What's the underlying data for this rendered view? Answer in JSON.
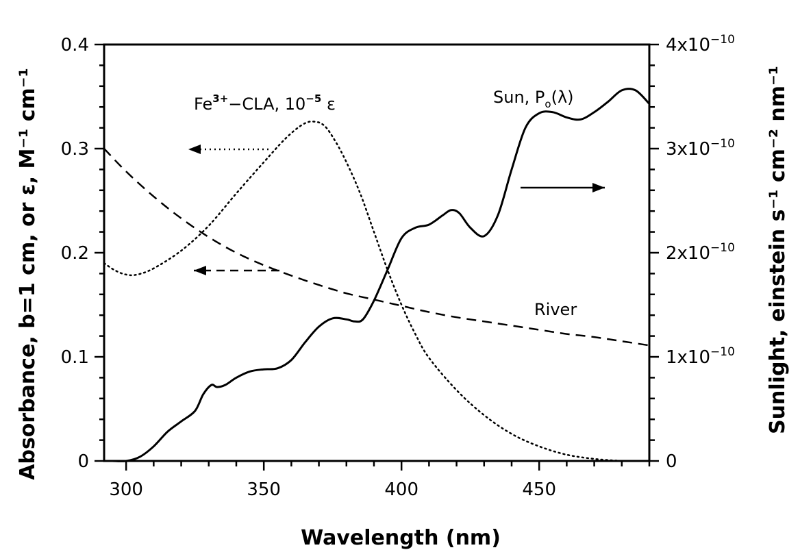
{
  "chart_data": {
    "type": "line",
    "xlabel": "Wavelength (nm)",
    "ylabel": "Absorbance, b=1 cm, or ε, M⁻¹ cm⁻¹",
    "y2label": "Sunlight, einstein s⁻¹ cm⁻² nm⁻¹",
    "xlim": [
      292,
      490
    ],
    "ylim": [
      0,
      0.4
    ],
    "y2lim": [
      0,
      4e-10
    ],
    "grid": false,
    "legend": "none",
    "x_ticks": [
      300,
      350,
      400,
      450
    ],
    "x_tick_labels": [
      "300",
      "350",
      "400",
      "450"
    ],
    "y_ticks": [
      0,
      0.1,
      0.2,
      0.3,
      0.4
    ],
    "y_tick_labels": [
      "0",
      "0.1",
      "0.2",
      "0.3",
      "0.4"
    ],
    "y2_ticks": [
      0,
      1e-10,
      2e-10,
      3e-10,
      4e-10
    ],
    "y2_tick_labels": [
      {
        "mant": "",
        "exp": "",
        "text": "0"
      },
      {
        "mant": "1x10",
        "exp": "−10"
      },
      {
        "mant": "2x10",
        "exp": "−10"
      },
      {
        "mant": "3x10",
        "exp": "−10"
      },
      {
        "mant": "4x10",
        "exp": "−10"
      }
    ],
    "series": [
      {
        "axis": "left",
        "style": "dashed",
        "x": [
          292,
          300,
          310,
          320,
          330,
          340,
          350,
          360,
          370,
          380,
          390,
          400,
          410,
          420,
          430,
          440,
          450,
          460,
          470,
          480,
          490
        ],
        "y": [
          0.3,
          0.278,
          0.254,
          0.233,
          0.215,
          0.2,
          0.188,
          0.178,
          0.169,
          0.161,
          0.155,
          0.149,
          0.143,
          0.138,
          0.134,
          0.13,
          0.126,
          0.122,
          0.119,
          0.115,
          0.111
        ]
      },
      {
        "axis": "left",
        "style": "dotted",
        "x": [
          292,
          296,
          300,
          304,
          310,
          320,
          330,
          340,
          350,
          358,
          364,
          368,
          372,
          376,
          380,
          385,
          390,
          395,
          400,
          405,
          410,
          420,
          430,
          440,
          450,
          460,
          470,
          480
        ],
        "y": [
          0.19,
          0.183,
          0.179,
          0.179,
          0.185,
          0.202,
          0.226,
          0.257,
          0.287,
          0.31,
          0.323,
          0.326,
          0.322,
          0.307,
          0.287,
          0.257,
          0.22,
          0.183,
          0.15,
          0.122,
          0.099,
          0.068,
          0.044,
          0.026,
          0.014,
          0.006,
          0.002,
          0.0
        ]
      },
      {
        "axis": "right",
        "style": "solid",
        "x": [
          295,
          300,
          305,
          310,
          315,
          320,
          325,
          328,
          331,
          333,
          336,
          340,
          345,
          350,
          355,
          360,
          365,
          370,
          375,
          380,
          383,
          386,
          390,
          395,
          400,
          405,
          410,
          415,
          418,
          421,
          425,
          430,
          435,
          440,
          445,
          450,
          455,
          460,
          465,
          470,
          475,
          480,
          485,
          490
        ],
        "y": [
          0,
          0,
          4e-12,
          1.4e-11,
          2.8e-11,
          3.8e-11,
          4.8e-11,
          6.4e-11,
          7.3e-11,
          7.1e-11,
          7.3e-11,
          8e-11,
          8.6e-11,
          8.8e-11,
          8.9e-11,
          9.7e-11,
          1.14e-10,
          1.29e-10,
          1.37e-10,
          1.36e-10,
          1.34e-10,
          1.36e-10,
          1.54e-10,
          1.84e-10,
          2.14e-10,
          2.24e-10,
          2.27e-10,
          2.36e-10,
          2.41e-10,
          2.38e-10,
          2.24e-10,
          2.16e-10,
          2.36e-10,
          2.8e-10,
          3.2e-10,
          3.34e-10,
          3.35e-10,
          3.3e-10,
          3.28e-10,
          3.35e-10,
          3.45e-10,
          3.56e-10,
          3.56e-10,
          3.43e-10
        ]
      }
    ],
    "annotations": {
      "fe_label": {
        "base": "Fe",
        "sup": "3+",
        "rest": "−CLA, 10",
        "sup2": "−5",
        "tail": " ε"
      },
      "sun_label": {
        "base": "Sun, P",
        "sub": "o",
        "tail": "(λ)"
      },
      "river_label": "River"
    }
  }
}
